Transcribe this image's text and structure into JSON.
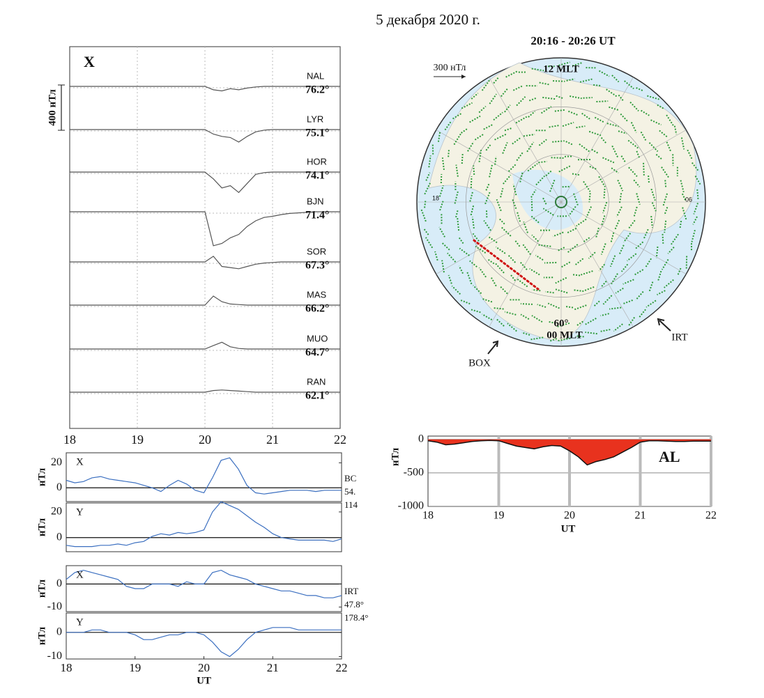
{
  "figure_title": "5 декабря 2020 г.",
  "chart_data": [
    {
      "type": "stacked-line",
      "component": "X",
      "x": [
        18,
        18.125,
        18.25,
        18.375,
        18.5,
        18.625,
        18.75,
        18.875,
        19,
        19.125,
        19.25,
        19.375,
        19.5,
        19.625,
        19.75,
        19.875,
        20,
        20.125,
        20.25,
        20.375,
        20.5,
        20.625,
        20.75,
        20.875,
        21,
        21.125,
        21.25,
        21.375,
        21.5,
        21.625,
        21.75,
        21.875,
        22
      ],
      "xlim": [
        18,
        22
      ],
      "xticks": [
        18,
        19,
        20,
        21,
        22
      ],
      "grid": true,
      "scale_bar": {
        "value": 400,
        "label": "400 нТл"
      },
      "series": [
        {
          "name": "NAL",
          "latitude": "76.2°",
          "color": "#555555",
          "values": [
            0,
            0,
            0,
            0,
            0,
            0,
            0,
            0,
            0,
            0,
            0,
            0,
            0,
            0,
            0,
            0,
            0,
            -30,
            -40,
            -20,
            -30,
            -15,
            -5,
            0,
            0,
            0,
            0,
            0,
            0,
            0,
            0,
            0,
            0
          ]
        },
        {
          "name": "LYR",
          "latitude": "75.1°",
          "color": "#555555",
          "values": [
            0,
            0,
            0,
            0,
            0,
            0,
            0,
            0,
            0,
            0,
            0,
            0,
            0,
            0,
            0,
            0,
            0,
            -40,
            -60,
            -70,
            -110,
            -60,
            -20,
            -5,
            0,
            0,
            0,
            0,
            0,
            0,
            0,
            0,
            0
          ]
        },
        {
          "name": "HOR",
          "latitude": "74.1°",
          "color": "#555555",
          "values": [
            0,
            0,
            0,
            0,
            0,
            0,
            0,
            0,
            0,
            0,
            0,
            0,
            0,
            0,
            0,
            0,
            0,
            -60,
            -140,
            -120,
            -180,
            -100,
            -20,
            -5,
            0,
            0,
            0,
            0,
            0,
            0,
            0,
            0,
            0
          ]
        },
        {
          "name": "BJN",
          "latitude": "71.4°",
          "color": "#555555",
          "values": [
            0,
            0,
            0,
            0,
            0,
            0,
            0,
            0,
            0,
            0,
            0,
            0,
            0,
            0,
            0,
            0,
            0,
            -300,
            -280,
            -230,
            -200,
            -130,
            -80,
            -50,
            -40,
            -25,
            -15,
            -10,
            -5,
            0,
            0,
            0,
            0
          ]
        },
        {
          "name": "SOR",
          "latitude": "67.3°",
          "color": "#555555",
          "values": [
            0,
            0,
            0,
            0,
            0,
            0,
            0,
            0,
            0,
            0,
            0,
            0,
            0,
            0,
            0,
            0,
            0,
            50,
            -40,
            -50,
            -60,
            -40,
            -20,
            -10,
            -5,
            0,
            0,
            0,
            0,
            0,
            0,
            0,
            0
          ]
        },
        {
          "name": "MAS",
          "latitude": "66.2°",
          "color": "#555555",
          "values": [
            0,
            0,
            0,
            0,
            0,
            0,
            0,
            0,
            0,
            0,
            0,
            0,
            0,
            0,
            0,
            0,
            0,
            80,
            30,
            10,
            5,
            0,
            0,
            0,
            0,
            0,
            0,
            0,
            0,
            0,
            0,
            0,
            0
          ]
        },
        {
          "name": "MUO",
          "latitude": "64.7°",
          "color": "#555555",
          "values": [
            0,
            0,
            0,
            0,
            0,
            0,
            0,
            0,
            0,
            0,
            0,
            0,
            0,
            0,
            0,
            0,
            0,
            30,
            60,
            20,
            5,
            0,
            0,
            0,
            0,
            0,
            0,
            0,
            0,
            0,
            0,
            0,
            0
          ]
        },
        {
          "name": "RAN",
          "latitude": "62.1°",
          "color": "#555555",
          "values": [
            0,
            0,
            0,
            0,
            0,
            0,
            0,
            0,
            0,
            0,
            0,
            0,
            0,
            0,
            0,
            0,
            0,
            15,
            20,
            15,
            10,
            5,
            0,
            0,
            0,
            0,
            0,
            0,
            0,
            0,
            0,
            0,
            0
          ]
        }
      ]
    },
    {
      "type": "map",
      "title": "20:16 - 20:26 UT",
      "scale_label": "300 нТл",
      "noon": "12 MLT",
      "midnight": "00 MLT",
      "latitude": "60°",
      "dusk": "18",
      "dawn": "06",
      "stations": [
        "BOX",
        "IRT"
      ]
    },
    {
      "type": "area",
      "label": "AL",
      "ylabel": "нТл",
      "xlabel": "UT",
      "color": "#e8321e",
      "x": [
        18,
        18.125,
        18.25,
        18.375,
        18.5,
        18.625,
        18.75,
        18.875,
        19,
        19.125,
        19.25,
        19.375,
        19.5,
        19.625,
        19.75,
        19.875,
        20,
        20.125,
        20.25,
        20.375,
        20.5,
        20.625,
        20.75,
        20.875,
        21,
        21.125,
        21.25,
        21.375,
        21.5,
        21.625,
        21.75,
        21.875,
        22
      ],
      "values": [
        -20,
        -40,
        -80,
        -70,
        -50,
        -30,
        -20,
        -15,
        -20,
        -60,
        -100,
        -120,
        -140,
        -110,
        -90,
        -100,
        -170,
        -260,
        -380,
        -330,
        -300,
        -260,
        -190,
        -120,
        -40,
        -20,
        -20,
        -25,
        -30,
        -30,
        -25,
        -25,
        -25
      ],
      "xlim": [
        18,
        22
      ],
      "xticks": [
        18,
        19,
        20,
        21,
        22
      ],
      "ylim": [
        -1000,
        50
      ],
      "yticks": [
        0,
        -500,
        -1000
      ]
    },
    {
      "type": "line",
      "label": "X",
      "ylabel": "нТл",
      "color": "#3b6fc0",
      "annotations": [
        "BC",
        "54.",
        "114"
      ],
      "x": [
        18,
        18.125,
        18.25,
        18.375,
        18.5,
        18.625,
        18.75,
        18.875,
        19,
        19.125,
        19.25,
        19.375,
        19.5,
        19.625,
        19.75,
        19.875,
        20,
        20.125,
        20.25,
        20.375,
        20.5,
        20.625,
        20.75,
        20.875,
        21,
        21.125,
        21.25,
        21.375,
        21.5,
        21.625,
        21.75,
        21.875,
        22
      ],
      "values": [
        6,
        4,
        5,
        8,
        9,
        7,
        6,
        5,
        4,
        2,
        0,
        -3,
        2,
        6,
        3,
        -2,
        -4,
        8,
        22,
        24,
        15,
        2,
        -4,
        -5,
        -4,
        -3,
        -2,
        -2,
        -2,
        -3,
        -2,
        -2,
        -2
      ],
      "xlim": [
        18,
        22
      ],
      "ylim": [
        -11,
        28
      ],
      "yticks": [
        0,
        20
      ]
    },
    {
      "type": "line",
      "label": "Y",
      "ylabel": "нТл",
      "color": "#3b6fc0",
      "x": [
        18,
        18.125,
        18.25,
        18.375,
        18.5,
        18.625,
        18.75,
        18.875,
        19,
        19.125,
        19.25,
        19.375,
        19.5,
        19.625,
        19.75,
        19.875,
        20,
        20.125,
        20.25,
        20.375,
        20.5,
        20.625,
        20.75,
        20.875,
        21,
        21.125,
        21.25,
        21.375,
        21.5,
        21.625,
        21.75,
        21.875,
        22
      ],
      "values": [
        -6,
        -7,
        -7,
        -7,
        -6,
        -6,
        -5,
        -6,
        -4,
        -3,
        1,
        3,
        2,
        4,
        3,
        4,
        6,
        20,
        28,
        25,
        22,
        17,
        12,
        8,
        3,
        0,
        -1,
        -2,
        -2,
        -2,
        -2,
        -3,
        -1
      ],
      "xlim": [
        18,
        22
      ],
      "ylim": [
        -11,
        27
      ],
      "yticks": [
        0,
        20
      ]
    },
    {
      "type": "line",
      "label": "X",
      "ylabel": "нТл",
      "color": "#3b6fc0",
      "annotations": [
        "IRT",
        "47.8°",
        "178.4°"
      ],
      "x": [
        18,
        18.125,
        18.25,
        18.375,
        18.5,
        18.625,
        18.75,
        18.875,
        19,
        19.125,
        19.25,
        19.375,
        19.5,
        19.625,
        19.75,
        19.875,
        20,
        20.125,
        20.25,
        20.375,
        20.5,
        20.625,
        20.75,
        20.875,
        21,
        21.125,
        21.25,
        21.375,
        21.5,
        21.625,
        21.75,
        21.875,
        22
      ],
      "values": [
        2,
        5,
        6,
        5,
        4,
        3,
        2,
        -1,
        -2,
        -2,
        0,
        0,
        0,
        -1,
        1,
        0,
        0,
        5,
        6,
        4,
        3,
        2,
        0,
        -1,
        -2,
        -3,
        -3,
        -4,
        -5,
        -5,
        -6,
        -6,
        -5
      ],
      "xlim": [
        18,
        22
      ],
      "ylim": [
        -12,
        8
      ],
      "yticks": [
        0,
        -10
      ]
    },
    {
      "type": "line",
      "label": "Y",
      "ylabel": "нТл",
      "xlabel": "UT",
      "color": "#3b6fc0",
      "x": [
        18,
        18.125,
        18.25,
        18.375,
        18.5,
        18.625,
        18.75,
        18.875,
        19,
        19.125,
        19.25,
        19.375,
        19.5,
        19.625,
        19.75,
        19.875,
        20,
        20.125,
        20.25,
        20.375,
        20.5,
        20.625,
        20.75,
        20.875,
        21,
        21.125,
        21.25,
        21.375,
        21.5,
        21.625,
        21.75,
        21.875,
        22
      ],
      "values": [
        0,
        0,
        0,
        1,
        1,
        0,
        0,
        0,
        -1,
        -3,
        -3,
        -2,
        -1,
        -1,
        0,
        0,
        -1,
        -4,
        -8,
        -10,
        -7,
        -3,
        0,
        1,
        2,
        2,
        2,
        1,
        1,
        1,
        1,
        1,
        1
      ],
      "xlim": [
        18,
        22
      ],
      "xticks": [
        18,
        19,
        20,
        21,
        22
      ],
      "ylim": [
        -11,
        8
      ],
      "yticks": [
        0,
        -10
      ]
    }
  ]
}
